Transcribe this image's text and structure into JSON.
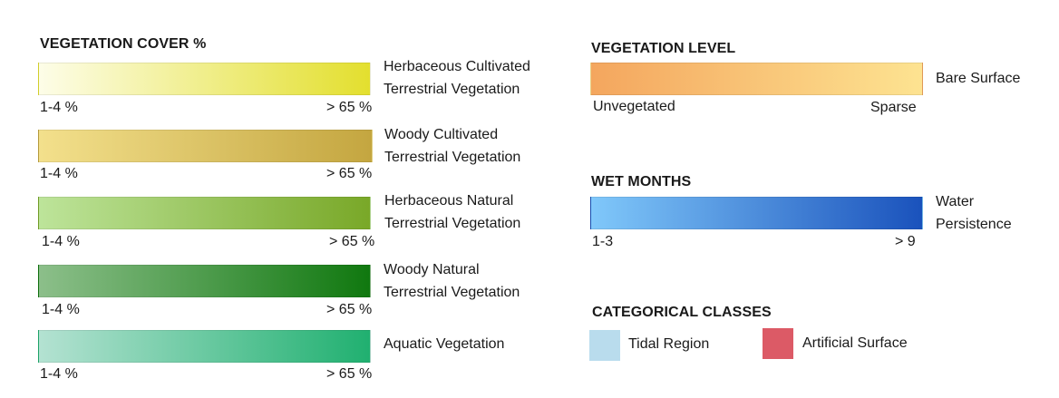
{
  "vegetation_cover": {
    "heading": "VEGETATION COVER %",
    "items": [
      {
        "label_line1": "Herbaceous Cultivated",
        "label_line2": "Terrestrial Vegetation",
        "min": "1-4 %",
        "max": "> 65 %",
        "color_start": "#fdfde8",
        "color_end": "#e3df2e"
      },
      {
        "label_line1": "Woody Cultivated",
        "label_line2": "Terrestrial Vegetation",
        "min": "1-4 %",
        "max": "> 65 %",
        "color_start": "#f3e08c",
        "color_end": "#c4a640"
      },
      {
        "label_line1": "Herbaceous Natural",
        "label_line2": "Terrestrial Vegetation",
        "min": "1-4 %",
        "max": "> 65 %",
        "color_start": "#bde49a",
        "color_end": "#79a828"
      },
      {
        "label_line1": "Woody Natural",
        "label_line2": "Terrestrial Vegetation",
        "min": "1-4 %",
        "max": "> 65 %",
        "color_start": "#8cbf8a",
        "color_end": "#10780f"
      },
      {
        "label_line1": "Aquatic Vegetation",
        "label_line2": "",
        "min": "1-4 %",
        "max": "> 65 %",
        "color_start": "#b4e2d2",
        "color_end": "#20b070"
      }
    ]
  },
  "vegetation_level": {
    "heading": "VEGETATION LEVEL",
    "label": "Bare Surface",
    "min": "Unvegetated",
    "max": "Sparse",
    "color_start": "#f4a65e",
    "color_end": "#fde391"
  },
  "wet_months": {
    "heading": "WET MONTHS",
    "label_line1": "Water",
    "label_line2": "Persistence",
    "min": "1-3",
    "max": "> 9",
    "color_start": "#80c8fa",
    "color_end": "#1a52bc"
  },
  "categorical_classes": {
    "heading": "CATEGORICAL CLASSES",
    "items": [
      {
        "label": "Tidal Region",
        "color": "#b9dced"
      },
      {
        "label": "Artificial Surface",
        "color": "#dc5a66"
      }
    ]
  }
}
